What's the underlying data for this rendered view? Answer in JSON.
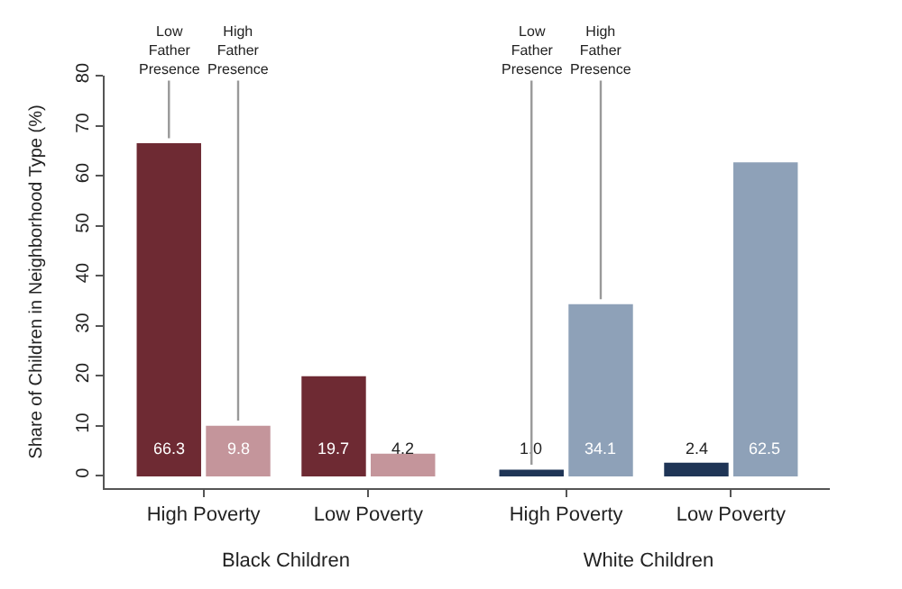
{
  "chart_data": [
    {
      "type": "bar",
      "xlabel": "Black Children",
      "ylabel": "Share of Children in Neighborhood Type (%)",
      "categories": [
        "High Poverty",
        "Low Poverty"
      ],
      "series": [
        {
          "name": "Low Father Presence",
          "color": "#6e2a33",
          "values": [
            66.3,
            19.7
          ],
          "value_labels": [
            "66.3",
            "19.7"
          ]
        },
        {
          "name": "High Father Presence",
          "color": "#c4959b",
          "values": [
            9.8,
            4.2
          ],
          "value_labels": [
            "9.8",
            "4.2"
          ]
        }
      ],
      "ylim": [
        -2.5,
        80
      ],
      "yticks": [
        0,
        10,
        20,
        30,
        40,
        50,
        60,
        70,
        80
      ],
      "legend": false
    },
    {
      "type": "bar",
      "xlabel": "White Children",
      "categories": [
        "High Poverty",
        "Low Poverty"
      ],
      "series": [
        {
          "name": "Low Father Presence",
          "color": "#1f3556",
          "values": [
            1.0,
            2.4
          ],
          "value_labels": [
            "1.0",
            "2.4"
          ]
        },
        {
          "name": "High Father Presence",
          "color": "#8ea1b8",
          "values": [
            34.1,
            62.5
          ],
          "value_labels": [
            "34.1",
            "62.5"
          ]
        }
      ],
      "ylim": [
        -2.5,
        80
      ],
      "yticks": [
        0,
        10,
        20,
        30,
        40,
        50,
        60,
        70,
        80
      ],
      "legend": false,
      "tick_labels": "x"
    }
  ]
}
